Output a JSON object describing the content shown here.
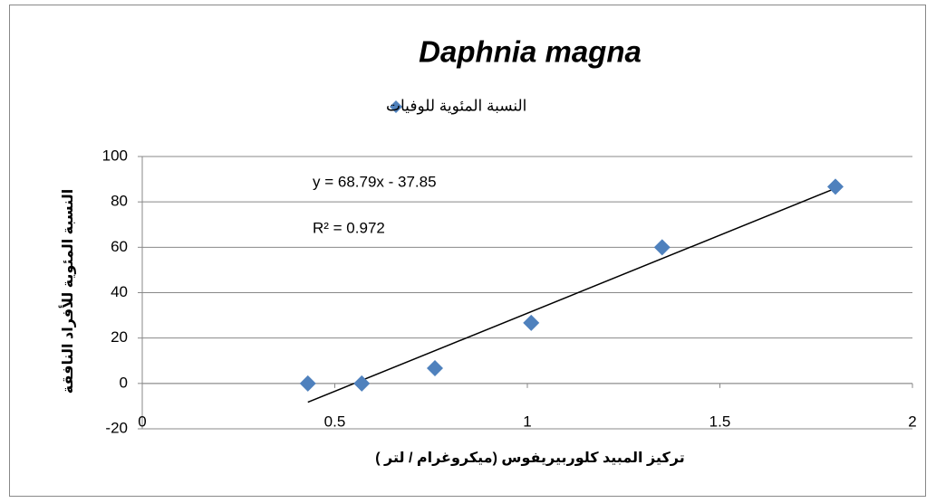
{
  "chart_data": {
    "type": "scatter",
    "title": "Daphnia magna",
    "xlabel": "تركيز المبيد كلوربيريفوس (ميكروغرام / لتر )",
    "ylabel": "النسبة المئوية للأفراد النافقة",
    "series": [
      {
        "name": "النسبة المئوية للوفيات",
        "color": "#4f81bd",
        "x": [
          0.43,
          0.57,
          0.76,
          1.01,
          1.35,
          1.8
        ],
        "values": [
          0,
          0,
          6.7,
          26.7,
          60,
          86.7
        ]
      }
    ],
    "trendline": {
      "slope": 68.79,
      "intercept": -37.85,
      "label": "y = 68.79x - 37.85",
      "r2": 0.972,
      "r2_label": "R² = 0.972"
    },
    "xlim": [
      0,
      2
    ],
    "xticks": [
      0,
      0.5,
      1,
      1.5,
      2
    ],
    "ylim": [
      -20,
      100
    ],
    "yticks": [
      -20,
      0,
      20,
      40,
      60,
      80,
      100
    ],
    "grid": true,
    "legend": "top"
  }
}
